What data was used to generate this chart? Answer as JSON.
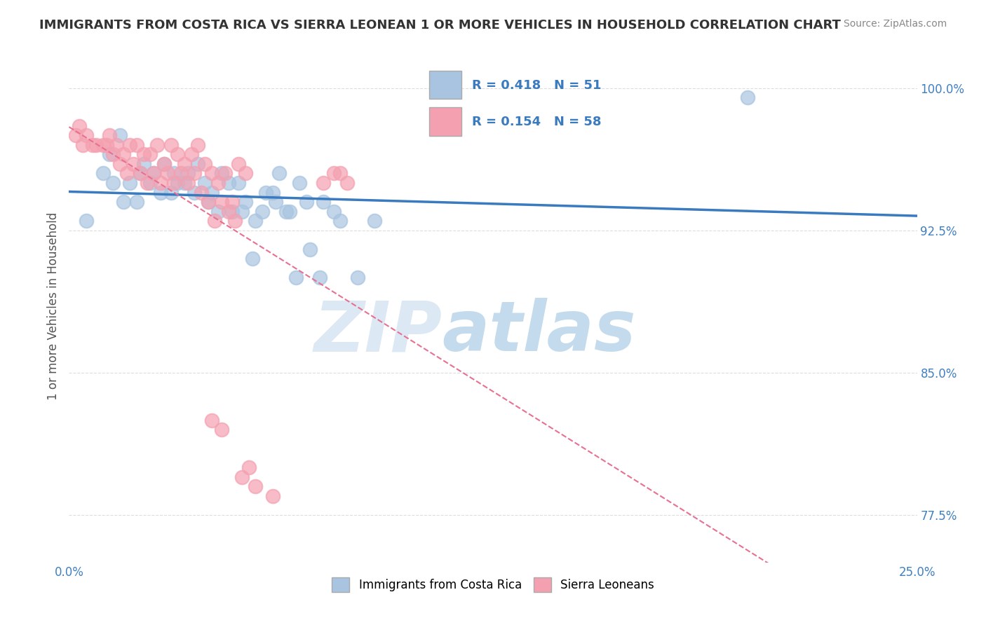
{
  "title": "IMMIGRANTS FROM COSTA RICA VS SIERRA LEONEAN 1 OR MORE VEHICLES IN HOUSEHOLD CORRELATION CHART",
  "source": "Source: ZipAtlas.com",
  "ylabel": "1 or more Vehicles in Household",
  "xlabel": "",
  "xlim": [
    0.0,
    25.0
  ],
  "ylim": [
    75.0,
    102.0
  ],
  "yticks": [
    77.5,
    85.0,
    92.5,
    100.0
  ],
  "xticks": [
    0.0,
    25.0
  ],
  "blue_R": 0.418,
  "blue_N": 51,
  "pink_R": 0.154,
  "pink_N": 58,
  "blue_color": "#a8c4e0",
  "pink_color": "#f4a0b0",
  "blue_line_color": "#3a7abf",
  "pink_line_color": "#e87090",
  "blue_scatter_x": [
    0.5,
    1.2,
    1.5,
    1.8,
    2.0,
    2.2,
    2.5,
    2.8,
    3.0,
    3.2,
    3.5,
    3.8,
    4.0,
    4.2,
    4.5,
    4.8,
    5.0,
    5.2,
    5.5,
    5.8,
    6.0,
    6.2,
    6.5,
    6.8,
    7.0,
    7.5,
    7.8,
    8.0,
    8.5,
    9.0,
    1.0,
    1.3,
    1.6,
    2.1,
    2.4,
    2.7,
    3.1,
    3.4,
    3.7,
    4.1,
    4.4,
    4.7,
    5.1,
    5.4,
    5.7,
    6.1,
    6.4,
    6.7,
    7.1,
    7.4,
    20.0
  ],
  "blue_scatter_y": [
    93.0,
    96.5,
    97.5,
    95.0,
    94.0,
    96.0,
    95.5,
    96.0,
    94.5,
    95.0,
    95.5,
    96.0,
    95.0,
    94.5,
    95.5,
    93.5,
    95.0,
    94.0,
    93.0,
    94.5,
    94.5,
    95.5,
    93.5,
    95.0,
    94.0,
    94.0,
    93.5,
    93.0,
    90.0,
    93.0,
    95.5,
    95.0,
    94.0,
    95.5,
    95.0,
    94.5,
    95.5,
    95.0,
    94.5,
    94.0,
    93.5,
    95.0,
    93.5,
    91.0,
    93.5,
    94.0,
    93.5,
    90.0,
    91.5,
    90.0,
    99.5
  ],
  "pink_scatter_x": [
    0.3,
    0.5,
    0.8,
    1.0,
    1.2,
    1.4,
    1.6,
    1.8,
    2.0,
    2.2,
    2.4,
    2.6,
    2.8,
    3.0,
    3.2,
    3.4,
    3.6,
    3.8,
    4.0,
    4.2,
    4.4,
    4.6,
    4.8,
    5.0,
    5.2,
    0.2,
    0.4,
    0.7,
    1.1,
    1.3,
    1.5,
    1.7,
    1.9,
    2.1,
    2.3,
    2.5,
    2.7,
    2.9,
    3.1,
    3.3,
    3.5,
    3.7,
    3.9,
    4.1,
    4.3,
    4.5,
    4.7,
    4.9,
    5.1,
    5.3,
    5.5,
    6.0,
    4.2,
    4.5,
    7.5,
    7.8,
    8.2,
    8.0
  ],
  "pink_scatter_y": [
    98.0,
    97.5,
    97.0,
    97.0,
    97.5,
    97.0,
    96.5,
    97.0,
    97.0,
    96.5,
    96.5,
    97.0,
    96.0,
    97.0,
    96.5,
    96.0,
    96.5,
    97.0,
    96.0,
    95.5,
    95.0,
    95.5,
    94.0,
    96.0,
    95.5,
    97.5,
    97.0,
    97.0,
    97.0,
    96.5,
    96.0,
    95.5,
    96.0,
    95.5,
    95.0,
    95.5,
    95.0,
    95.5,
    95.0,
    95.5,
    95.0,
    95.5,
    94.5,
    94.0,
    93.0,
    94.0,
    93.5,
    93.0,
    79.5,
    80.0,
    79.0,
    78.5,
    82.5,
    82.0,
    95.0,
    95.5,
    95.0,
    95.5
  ],
  "legend_labels": [
    "Immigrants from Costa Rica",
    "Sierra Leoneans"
  ],
  "background_color": "#ffffff",
  "grid_color": "#dddddd",
  "title_color": "#333333",
  "axis_label_color": "#555555",
  "tick_label_color": "#4080c0",
  "source_color": "#888888"
}
